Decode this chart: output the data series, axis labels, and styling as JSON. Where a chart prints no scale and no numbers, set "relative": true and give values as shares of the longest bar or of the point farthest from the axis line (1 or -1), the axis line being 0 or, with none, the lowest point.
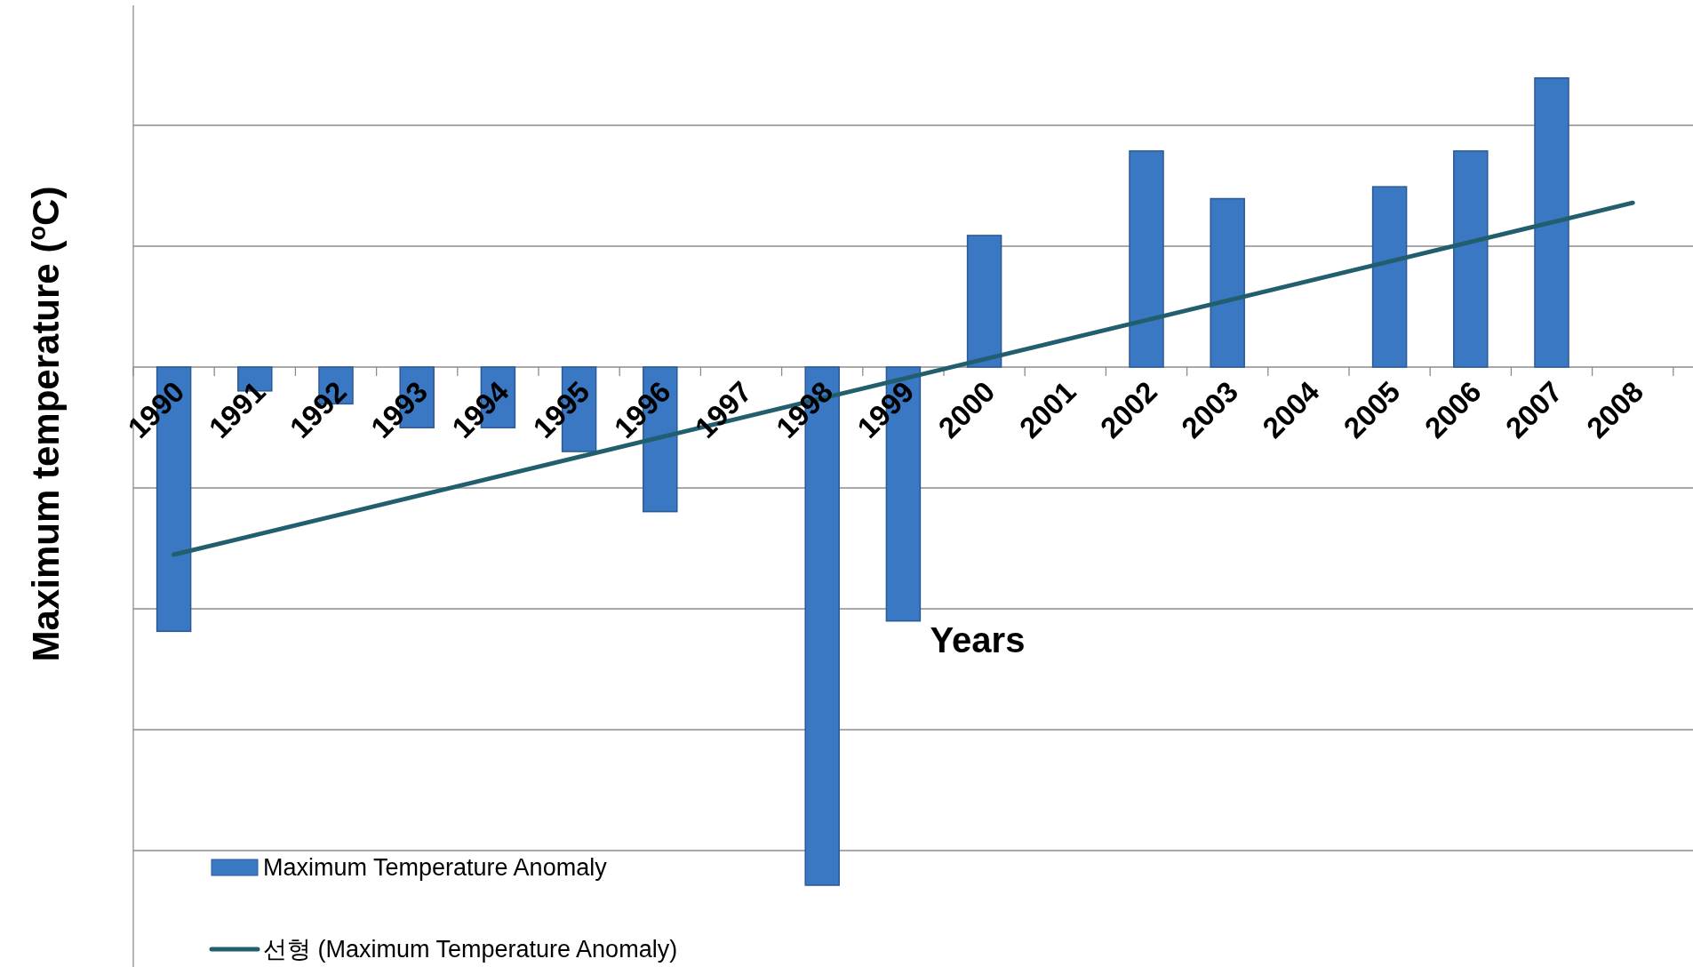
{
  "chart_data": {
    "type": "bar",
    "relative": true,
    "xlabel": "Years",
    "ylabel": "Maximum temperature ($^{o}$C)",
    "categories": [
      "1990",
      "1991",
      "1992",
      "1993",
      "1994",
      "1995",
      "1996",
      "1997",
      "1998",
      "1999",
      "2000",
      "2001",
      "2002",
      "2003",
      "2004",
      "2005",
      "2006",
      "2007",
      "2008"
    ],
    "series": [
      {
        "name": "Maximum Temperature Anomaly",
        "color": "#3b78c4",
        "values": [
          -0.51,
          -0.046,
          -0.071,
          -0.117,
          -0.117,
          -0.163,
          -0.279,
          null,
          -1,
          -0.49,
          0.254,
          null,
          0.417,
          0.325,
          null,
          0.348,
          0.417,
          0.558,
          null
        ]
      },
      {
        "name": "선형 (Maximum Temperature Anomaly)",
        "type": "line",
        "color": "#215e6e",
        "values": [
          -0.362,
          null,
          null,
          null,
          null,
          null,
          null,
          null,
          null,
          null,
          null,
          null,
          null,
          null,
          null,
          null,
          null,
          null,
          0.317
        ]
      }
    ],
    "grid": "y",
    "legend": "bottom left"
  }
}
